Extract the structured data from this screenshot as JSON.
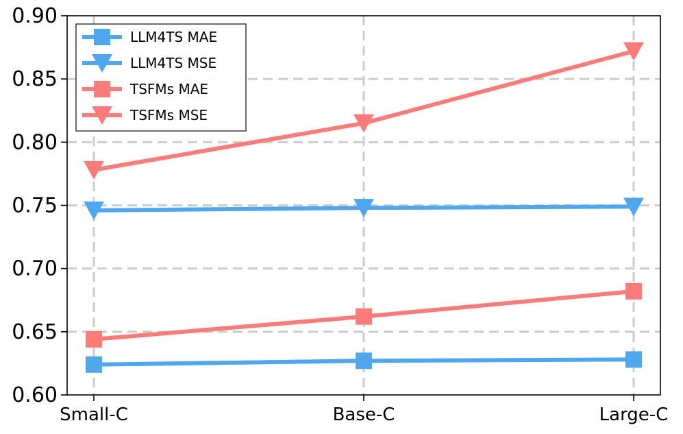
{
  "chart_data": {
    "type": "line",
    "categories": [
      "Small-C",
      "Base-C",
      "Large-C"
    ],
    "ylim": [
      0.6,
      0.9
    ],
    "yticks": [
      "0.60",
      "0.65",
      "0.70",
      "0.75",
      "0.80",
      "0.85",
      "0.90"
    ],
    "grid": true,
    "legend_position": "top-left",
    "series": [
      {
        "name": "LLM4TS MAE",
        "color": "#4fa8ef",
        "marker": "square",
        "values": [
          0.624,
          0.627,
          0.628
        ]
      },
      {
        "name": "LLM4TS MSE",
        "color": "#4fa8ef",
        "marker": "triangle-down",
        "values": [
          0.746,
          0.748,
          0.749
        ]
      },
      {
        "name": "TSFMs MAE",
        "color": "#fb7a7a",
        "marker": "square",
        "values": [
          0.644,
          0.662,
          0.682
        ]
      },
      {
        "name": "TSFMs MSE",
        "color": "#fb7a7a",
        "marker": "triangle-down",
        "values": [
          0.778,
          0.815,
          0.872
        ]
      }
    ]
  }
}
